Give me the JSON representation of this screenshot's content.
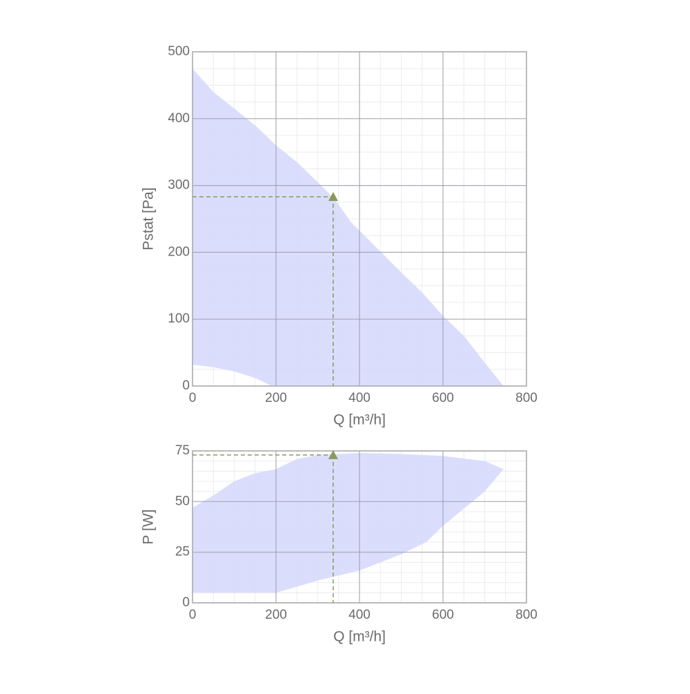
{
  "chart_data": [
    {
      "type": "area-band",
      "x_label": "Q [m³/h]",
      "y_label": "Pstat [Pa]",
      "xlim": [
        0,
        800
      ],
      "ylim": [
        0,
        500
      ],
      "xticks": [
        0,
        200,
        400,
        600,
        800
      ],
      "yticks": [
        0,
        100,
        200,
        300,
        400,
        500
      ],
      "x_minor_step": 50,
      "y_minor_step": 25,
      "grid": true,
      "band": {
        "color": "#d6dafc",
        "upper": {
          "x": [
            0,
            50,
            100,
            150,
            200,
            250,
            300,
            340,
            380,
            420,
            500,
            550,
            600,
            650,
            700,
            745
          ],
          "y": [
            475,
            440,
            415,
            390,
            360,
            335,
            305,
            280,
            245,
            220,
            170,
            140,
            105,
            75,
            35,
            0
          ]
        },
        "lower": {
          "x": [
            190,
            150,
            100,
            50,
            0
          ],
          "y": [
            0,
            12,
            22,
            28,
            32
          ]
        }
      },
      "point": {
        "x": 337,
        "y": 283,
        "color": "#8a9a5b"
      }
    },
    {
      "type": "area-band",
      "x_label": "Q [m³/h]",
      "y_label": "P [W]",
      "xlim": [
        0,
        800
      ],
      "ylim": [
        0,
        75
      ],
      "xticks": [
        0,
        200,
        400,
        600,
        800
      ],
      "yticks": [
        0,
        25,
        50,
        75
      ],
      "x_minor_step": 50,
      "y_minor_step": 5,
      "grid": true,
      "band": {
        "color": "#d6dafc",
        "upper": {
          "x": [
            0,
            50,
            100,
            150,
            200,
            250,
            300,
            400,
            500,
            600,
            700,
            745
          ],
          "y": [
            47,
            53,
            60,
            64,
            66,
            71,
            73,
            74,
            73.5,
            72.5,
            70,
            66
          ]
        },
        "lower": {
          "x": [
            700,
            600,
            560,
            500,
            400,
            300,
            200,
            100,
            0
          ],
          "y": [
            55,
            38,
            30,
            24,
            16,
            11,
            5,
            5,
            5
          ]
        }
      },
      "point": {
        "x": 337,
        "y": 73,
        "color": "#8a9a5b"
      }
    }
  ]
}
